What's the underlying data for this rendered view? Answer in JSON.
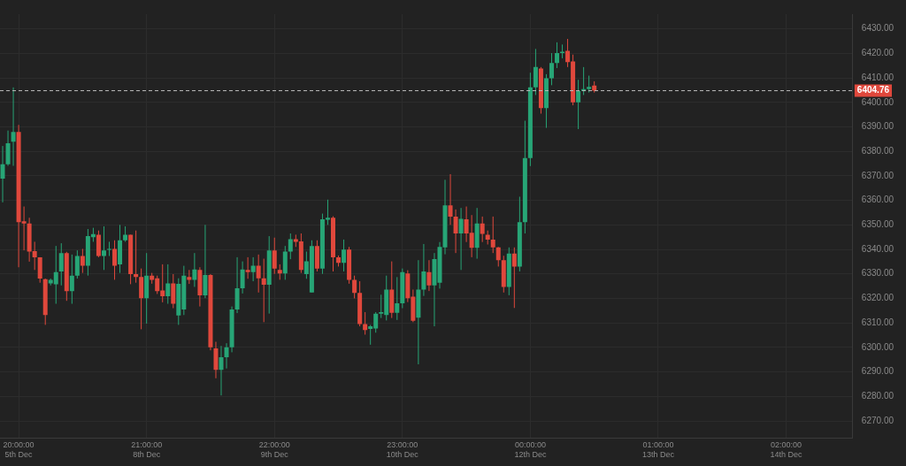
{
  "chart_data": {
    "type": "candlestick",
    "categories": [
      null,
      null,
      null,
      "20:00:00\n5th Dec",
      null,
      null,
      null,
      null,
      null,
      null,
      null,
      null,
      null,
      null,
      null,
      null,
      null,
      null,
      null,
      null,
      null,
      null,
      null,
      null,
      null,
      null,
      null,
      "21:00:00\n8th Dec",
      null,
      null,
      null,
      null,
      null,
      null,
      null,
      null,
      null,
      null,
      null,
      null,
      null,
      null,
      null,
      null,
      null,
      null,
      null,
      null,
      null,
      null,
      null,
      "22:00:00\n9th Dec",
      null,
      null,
      null,
      null,
      null,
      null,
      null,
      null,
      null,
      null,
      null,
      null,
      null,
      null,
      null,
      null,
      null,
      null,
      null,
      null,
      null,
      null,
      null,
      "23:00:00\n10th Dec",
      null,
      null,
      null,
      null,
      null,
      null,
      null,
      null,
      null,
      null,
      null,
      null,
      null,
      null,
      null,
      null,
      null,
      null,
      null,
      null,
      null,
      null,
      null,
      "00:00:00\n12th Dec",
      null,
      null,
      null,
      null,
      null,
      null,
      null,
      null,
      null,
      null,
      null,
      null,
      null,
      null,
      null,
      null,
      null,
      null,
      null,
      null,
      null,
      null,
      null,
      "01:00:00\n13th Dec",
      null,
      null,
      null,
      null,
      null,
      null,
      null,
      null,
      null,
      null,
      null,
      null,
      null,
      null,
      null,
      null,
      null,
      null,
      null,
      null,
      null,
      null,
      null,
      "02:00:00\n14th Dec",
      null,
      null,
      null,
      null,
      null,
      null,
      null,
      null,
      null,
      null,
      null,
      null
    ],
    "ohlc": [
      [
        6368.9,
        6382.2,
        6359.2,
        6374.7
      ],
      [
        6374.7,
        6388.5,
        6374.1,
        6383.3
      ],
      [
        6383.9,
        6406.1,
        6374.1,
        6387.9
      ],
      [
        6387.9,
        6390.8,
        6332.7,
        6351.1
      ],
      [
        6351.5,
        6357.5,
        6339.6,
        6350.6
      ],
      [
        6350.6,
        6352.9,
        6335.0,
        6339.1
      ],
      [
        6339.3,
        6343.1,
        6331.6,
        6336.8
      ],
      [
        6336.8,
        6336.8,
        6326.4,
        6328.1
      ],
      [
        6327.8,
        6328.1,
        6309.2,
        6313.2
      ],
      [
        6326.1,
        6328.1,
        6325.3,
        6327.6
      ],
      [
        6325.8,
        6341.4,
        6317.8,
        6330.7
      ],
      [
        6331.0,
        6342.5,
        6325.3,
        6338.5
      ],
      [
        6338.5,
        6339.0,
        6319.0,
        6323.0
      ],
      [
        6323.0,
        6337.9,
        6317.8,
        6329.3
      ],
      [
        6329.3,
        6339.6,
        6328.1,
        6337.3
      ],
      [
        6337.3,
        6340.2,
        6330.4,
        6333.3
      ],
      [
        6333.3,
        6348.3,
        6329.3,
        6345.4
      ],
      [
        6345.0,
        6348.8,
        6343.1,
        6346.2
      ],
      [
        6346.0,
        6347.7,
        6336.8,
        6337.3
      ],
      [
        6337.3,
        6349.4,
        6331.6,
        6339.6
      ],
      [
        6339.9,
        6343.1,
        6337.3,
        6340.2
      ],
      [
        6340.2,
        6343.7,
        6327.6,
        6333.3
      ],
      [
        6333.9,
        6350.0,
        6330.4,
        6343.7
      ],
      [
        6343.7,
        6349.4,
        6343.1,
        6346.0
      ],
      [
        6346.0,
        6346.0,
        6325.8,
        6329.9
      ],
      [
        6329.9,
        6347.7,
        6326.4,
        6328.7
      ],
      [
        6328.7,
        6332.2,
        6307.4,
        6320.1
      ],
      [
        6320.1,
        6338.5,
        6309.7,
        6329.3
      ],
      [
        6329.3,
        6330.4,
        6326.0,
        6327.6
      ],
      [
        6328.2,
        6329.3,
        6321.8,
        6323.0
      ],
      [
        6323.2,
        6333.9,
        6318.4,
        6320.9
      ],
      [
        6320.9,
        6333.9,
        6317.8,
        6326.1
      ],
      [
        6326.1,
        6329.9,
        6316.0,
        6317.8
      ],
      [
        6313.0,
        6328.2,
        6309.2,
        6325.9
      ],
      [
        6315.5,
        6333.3,
        6313.2,
        6329.3
      ],
      [
        6328.7,
        6331.6,
        6325.9,
        6327.6
      ],
      [
        6327.6,
        6338.5,
        6324.7,
        6331.8
      ],
      [
        6331.6,
        6332.7,
        6316.7,
        6321.2
      ],
      [
        6321.2,
        6350.0,
        6320.1,
        6329.5
      ],
      [
        6329.5,
        6329.9,
        6298.8,
        6300.0
      ],
      [
        6299.6,
        6302.3,
        6287.4,
        6290.8
      ],
      [
        6290.8,
        6300.6,
        6280.4,
        6296.0
      ],
      [
        6296.0,
        6301.7,
        6291.4,
        6300.0
      ],
      [
        6300.0,
        6316.7,
        6298.0,
        6315.5
      ],
      [
        6315.5,
        6336.8,
        6314.0,
        6324.1
      ],
      [
        6324.1,
        6335.1,
        6322.0,
        6331.8
      ],
      [
        6331.6,
        6336.8,
        6328.0,
        6330.7
      ],
      [
        6330.7,
        6336.8,
        6327.0,
        6333.3
      ],
      [
        6333.3,
        6337.9,
        6322.4,
        6328.2
      ],
      [
        6328.2,
        6336.2,
        6310.3,
        6325.6
      ],
      [
        6325.6,
        6345.4,
        6313.8,
        6339.6
      ],
      [
        6339.6,
        6344.8,
        6330.0,
        6332.2
      ],
      [
        6331.6,
        6333.9,
        6327.6,
        6330.2
      ],
      [
        6330.2,
        6341.4,
        6327.6,
        6339.1
      ],
      [
        6339.1,
        6346.5,
        6336.0,
        6344.2
      ],
      [
        6344.2,
        6346.0,
        6341.0,
        6343.1
      ],
      [
        6343.3,
        6346.5,
        6330.4,
        6331.6
      ],
      [
        6329.9,
        6339.1,
        6328.0,
        6335.1
      ],
      [
        6322.4,
        6343.7,
        6322.4,
        6341.4
      ],
      [
        6341.4,
        6343.7,
        6331.0,
        6332.2
      ],
      [
        6332.2,
        6354.6,
        6330.0,
        6352.3
      ],
      [
        6352.1,
        6360.3,
        6350.0,
        6352.9
      ],
      [
        6352.9,
        6353.5,
        6331.0,
        6336.8
      ],
      [
        6336.8,
        6337.5,
        6333.0,
        6334.5
      ],
      [
        6334.5,
        6344.0,
        6331.0,
        6339.9
      ],
      [
        6339.9,
        6341.0,
        6326.0,
        6327.6
      ],
      [
        6327.6,
        6329.3,
        6320.0,
        6322.2
      ],
      [
        6322.2,
        6327.0,
        6308.6,
        6309.5
      ],
      [
        6309.5,
        6314.4,
        6305.2,
        6307.1
      ],
      [
        6307.5,
        6309.2,
        6301.1,
        6308.6
      ],
      [
        6307.7,
        6314.4,
        6306.0,
        6313.8
      ],
      [
        6313.8,
        6321.5,
        6312.0,
        6314.4
      ],
      [
        6313.2,
        6329.3,
        6311.0,
        6323.6
      ],
      [
        6323.6,
        6335.1,
        6312.0,
        6314.1
      ],
      [
        6314.1,
        6328.7,
        6311.2,
        6318.0
      ],
      [
        6318.0,
        6332.2,
        6316.0,
        6330.7
      ],
      [
        6330.2,
        6331.5,
        6318.5,
        6320.1
      ],
      [
        6320.7,
        6323.6,
        6310.3,
        6310.9
      ],
      [
        6312.1,
        6335.6,
        6293.1,
        6323.6
      ],
      [
        6323.6,
        6342.2,
        6321.0,
        6331.0
      ],
      [
        6330.7,
        6335.6,
        6323.0,
        6325.3
      ],
      [
        6325.3,
        6338.5,
        6308.6,
        6336.0
      ],
      [
        6326.4,
        6343.0,
        6324.0,
        6341.0
      ],
      [
        6340.8,
        6368.4,
        6338.0,
        6358.0
      ],
      [
        6358.0,
        6370.7,
        6350.0,
        6353.4
      ],
      [
        6353.4,
        6356.3,
        6338.5,
        6346.5
      ],
      [
        6346.5,
        6356.9,
        6331.6,
        6352.5
      ],
      [
        6352.3,
        6357.5,
        6343.0,
        6346.5
      ],
      [
        6346.8,
        6354.0,
        6336.8,
        6340.6
      ],
      [
        6340.6,
        6356.9,
        6336.2,
        6350.6
      ],
      [
        6350.6,
        6353.4,
        6343.0,
        6346.3
      ],
      [
        6346.0,
        6347.7,
        6342.0,
        6344.0
      ],
      [
        6344.0,
        6353.4,
        6338.5,
        6340.8
      ],
      [
        6340.8,
        6341.0,
        6333.0,
        6335.6
      ],
      [
        6335.6,
        6337.4,
        6322.4,
        6324.7
      ],
      [
        6324.7,
        6340.8,
        6321.3,
        6338.3
      ],
      [
        6338.3,
        6340.8,
        6316.1,
        6333.0
      ],
      [
        6333.0,
        6361.5,
        6331.0,
        6351.1
      ],
      [
        6351.1,
        6392.5,
        6346.5,
        6377.3
      ],
      [
        6377.3,
        6412.1,
        6374.0,
        6406.1
      ],
      [
        6406.1,
        6421.8,
        6403.0,
        6414.4
      ],
      [
        6413.8,
        6414.4,
        6395.4,
        6397.7
      ],
      [
        6397.7,
        6411.5,
        6389.6,
        6409.8
      ],
      [
        6409.8,
        6420.1,
        6407.0,
        6416.1
      ],
      [
        6416.1,
        6424.5,
        6414.0,
        6420.1
      ],
      [
        6420.1,
        6423.6,
        6418.0,
        6420.7
      ],
      [
        6421.0,
        6425.9,
        6414.4,
        6416.4
      ],
      [
        6416.7,
        6419.5,
        6398.8,
        6400.0
      ],
      [
        6400.0,
        6409.2,
        6389.1,
        6404.6
      ],
      [
        6404.6,
        6414.4,
        6403.0,
        6405.4
      ],
      [
        6405.4,
        6410.9,
        6404.0,
        6406.3
      ],
      [
        6406.9,
        6408.6,
        6404.0,
        6404.8
      ],
      null,
      null,
      null,
      null,
      null,
      null,
      null,
      null,
      null,
      null,
      null,
      null,
      null,
      null,
      null,
      null,
      null,
      null,
      null,
      null,
      null,
      null,
      null,
      null,
      null,
      null,
      null,
      null,
      null,
      null,
      null,
      null,
      null,
      null,
      null,
      null,
      null,
      null,
      null,
      null,
      null,
      null,
      null,
      null,
      null,
      null,
      null,
      null
    ],
    "ylim": [
      6263,
      6436
    ],
    "yticks": [
      {
        "value": 6270,
        "label": "6270.00"
      },
      {
        "value": 6280,
        "label": "6280.00"
      },
      {
        "value": 6290,
        "label": "6290.00"
      },
      {
        "value": 6300,
        "label": "6300.00"
      },
      {
        "value": 6310,
        "label": "6310.00"
      },
      {
        "value": 6320,
        "label": "6320.00"
      },
      {
        "value": 6330,
        "label": "6330.00"
      },
      {
        "value": 6340,
        "label": "6340.00"
      },
      {
        "value": 6350,
        "label": "6350.00"
      },
      {
        "value": 6360,
        "label": "6360.00"
      },
      {
        "value": 6370,
        "label": "6370.00"
      },
      {
        "value": 6380,
        "label": "6380.00"
      },
      {
        "value": 6390,
        "label": "6390.00"
      },
      {
        "value": 6400,
        "label": "6400.00"
      },
      {
        "value": 6410,
        "label": "6410.00"
      },
      {
        "value": 6420,
        "label": "6420.00"
      },
      {
        "value": 6430,
        "label": "6430.00"
      }
    ],
    "ref_lines": [
      {
        "axis": "y",
        "value": 6404.76,
        "label": "6404.76",
        "color": "#bdbdbd",
        "line_style": "dashed"
      }
    ],
    "grid": true
  }
}
